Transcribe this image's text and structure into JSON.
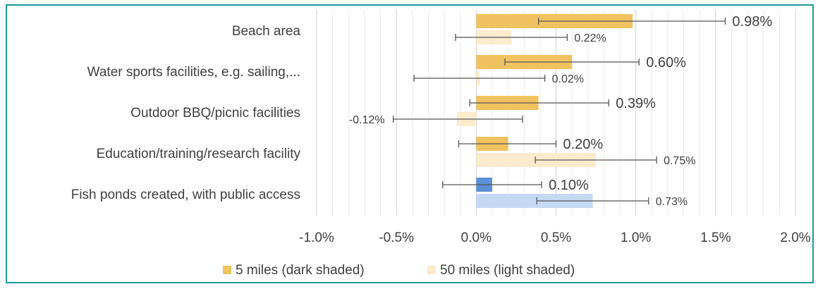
{
  "chart_data": {
    "type": "bar",
    "orientation": "horizontal",
    "categories": [
      "Beach area",
      "Water sports facilities, e.g. sailing,...",
      "Outdoor BBQ/picnic facilities",
      "Education/training/research facility",
      "Fish ponds created, with public access"
    ],
    "series": [
      {
        "name": "5 miles (dark shaded)",
        "color": "#f0c260",
        "values": [
          0.98,
          0.6,
          0.39,
          0.2,
          0.1
        ],
        "labels": [
          "0.98%",
          "0.60%",
          "0.39%",
          "0.20%",
          "0.10%"
        ],
        "error_low": [
          0.39,
          0.18,
          -0.04,
          -0.11,
          -0.21
        ],
        "error_high": [
          1.56,
          1.02,
          0.83,
          0.5,
          0.41
        ]
      },
      {
        "name": "50 miles (light shaded)",
        "color": "#fcebcc",
        "values": [
          0.22,
          0.02,
          -0.12,
          0.75,
          0.73
        ],
        "labels": [
          "0.22%",
          "0.02%",
          "-0.12%",
          "0.75%",
          "0.73%"
        ],
        "error_low": [
          -0.13,
          -0.39,
          -0.52,
          0.37,
          0.38
        ],
        "error_high": [
          0.57,
          0.43,
          0.29,
          1.13,
          1.08
        ]
      }
    ],
    "highlight": {
      "category_index": 4,
      "colors": [
        "#5b8fd6",
        "#c5d9f4"
      ]
    },
    "x_ticks": [
      "-1.0%",
      "-0.5%",
      "0.0%",
      "0.5%",
      "1.0%",
      "1.5%",
      "2.0%"
    ],
    "xlim": [
      -1.0,
      2.0
    ],
    "minor_grid_step": 0.1,
    "legend_position": "bottom"
  }
}
